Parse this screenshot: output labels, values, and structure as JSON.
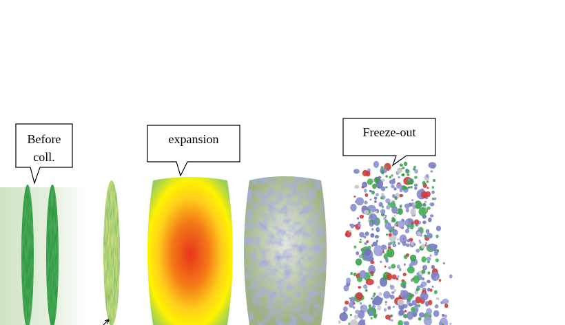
{
  "callouts": [
    {
      "lines": [
        "Before",
        "coll."
      ]
    },
    {
      "lines": [
        "expansion"
      ]
    },
    {
      "lines": [
        "Freeze-out"
      ]
    }
  ]
}
